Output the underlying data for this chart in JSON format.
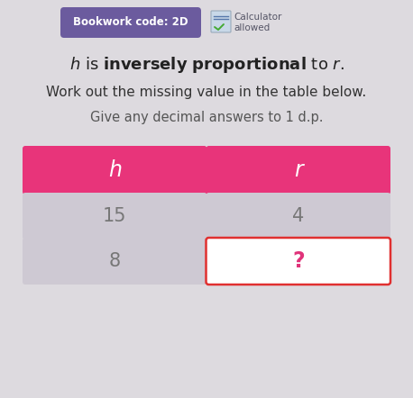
{
  "background_color": "#dddadf",
  "bookwork_label": "Bookwork code: 2D",
  "bookwork_bg": "#6b5b9e",
  "bookwork_text_color": "#ffffff",
  "calc_text": "Calculator\nallowed",
  "subtitle1": "Work out the missing value in the table below.",
  "subtitle2": "Give any decimal answers to 1 d.p.",
  "header_color": "#e8347a",
  "header_text_color": "#ffffff",
  "cell_bg_color": "#cec9d3",
  "cell_text_color": "#777777",
  "col1_header": "h",
  "col2_header": "r",
  "row1_col1": "15",
  "row1_col2": "4",
  "row2_col1": "8",
  "row2_col2": "?",
  "question_mark_color": "#e0337a",
  "question_box_border_color": "#e03030",
  "question_box_bg": "#ffffff",
  "fig_w": 4.58,
  "fig_h": 4.42,
  "dpi": 100
}
